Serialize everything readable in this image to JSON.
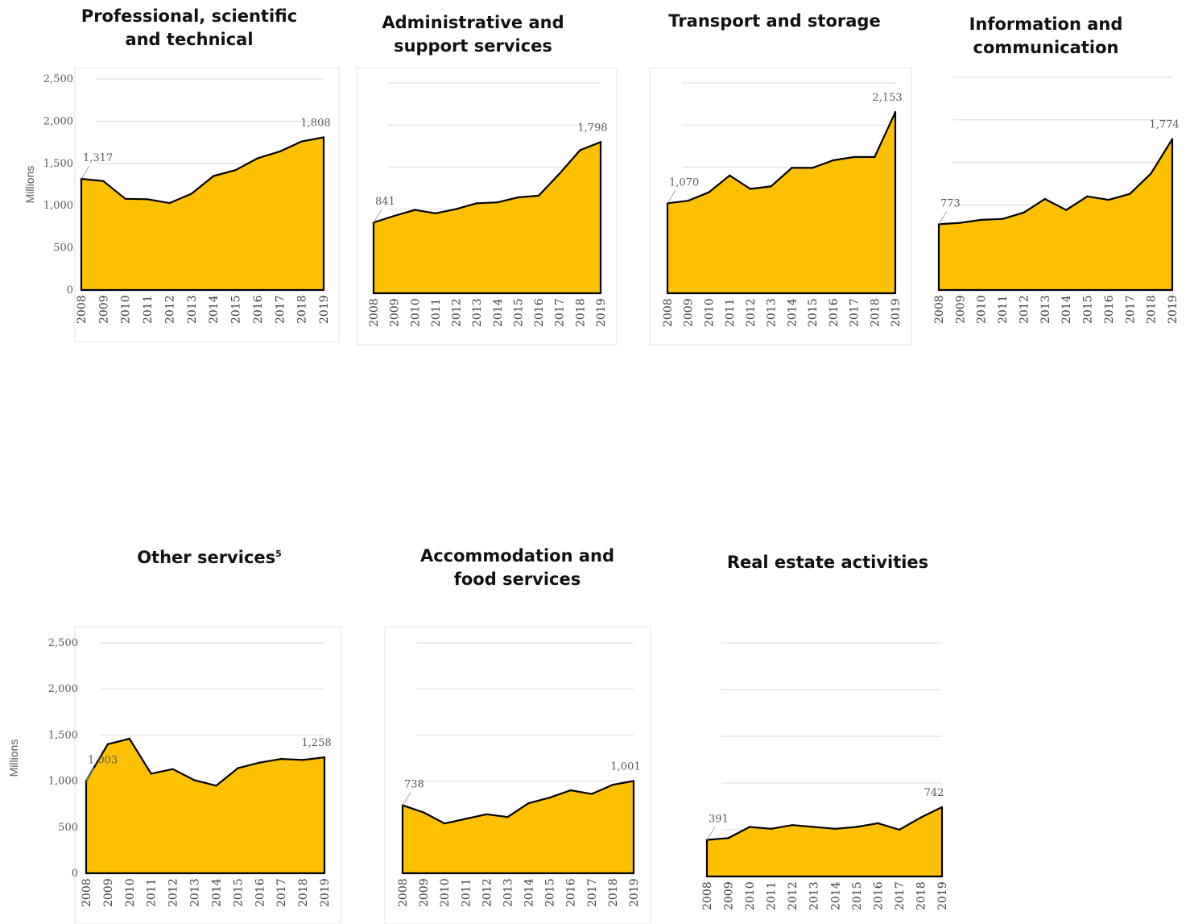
{
  "colors": {
    "area_fill": "#FFC000",
    "area_stroke": "#000000",
    "grid": "#D9D9D9",
    "frame": "#E6E6E6"
  },
  "chart_data": [
    {
      "type": "area",
      "title": "Professional, scientific and technical",
      "ylabel": "Millions",
      "ylim": [
        0,
        2500
      ],
      "y_ticks": [
        "0",
        "500",
        "1,000",
        "1,500",
        "2,000",
        "2,500"
      ],
      "categories": [
        "2008",
        "2009",
        "2010",
        "2011",
        "2012",
        "2013",
        "2014",
        "2015",
        "2016",
        "2017",
        "2018",
        "2019"
      ],
      "values": [
        1317,
        1290,
        1080,
        1075,
        1030,
        1140,
        1350,
        1420,
        1560,
        1640,
        1760,
        1808
      ],
      "labels": [
        {
          "index": 0,
          "text": "1,317"
        },
        {
          "index": 11,
          "text": "1,808"
        }
      ]
    },
    {
      "type": "area",
      "title": "Administrative and support services",
      "ylabel": "",
      "ylim": [
        0,
        2500
      ],
      "categories": [
        "2008",
        "2009",
        "2010",
        "2011",
        "2012",
        "2013",
        "2014",
        "2015",
        "2016",
        "2017",
        "2018",
        "2019"
      ],
      "values": [
        841,
        920,
        990,
        950,
        1000,
        1070,
        1080,
        1140,
        1160,
        1420,
        1700,
        1798
      ],
      "labels": [
        {
          "index": 0,
          "text": "841"
        },
        {
          "index": 11,
          "text": "1,798"
        }
      ]
    },
    {
      "type": "area",
      "title": "Transport and storage",
      "ylabel": "",
      "ylim": [
        0,
        2500
      ],
      "categories": [
        "2008",
        "2009",
        "2010",
        "2011",
        "2012",
        "2013",
        "2014",
        "2015",
        "2016",
        "2017",
        "2018",
        "2019"
      ],
      "values": [
        1070,
        1100,
        1200,
        1400,
        1240,
        1270,
        1490,
        1490,
        1580,
        1620,
        1620,
        2153
      ],
      "labels": [
        {
          "index": 0,
          "text": "1,070"
        },
        {
          "index": 11,
          "text": "2,153"
        }
      ]
    },
    {
      "type": "area",
      "title": "Information and communication",
      "ylabel": "",
      "ylim": [
        0,
        2500
      ],
      "categories": [
        "2008",
        "2009",
        "2010",
        "2011",
        "2012",
        "2013",
        "2014",
        "2015",
        "2016",
        "2017",
        "2018",
        "2019"
      ],
      "values": [
        773,
        790,
        825,
        835,
        910,
        1070,
        940,
        1100,
        1060,
        1130,
        1370,
        1774
      ],
      "labels": [
        {
          "index": 0,
          "text": "773"
        },
        {
          "index": 11,
          "text": "1,774"
        }
      ]
    },
    {
      "type": "area",
      "title": "Other services",
      "title_superscript": "5",
      "ylabel": "Millions",
      "ylim": [
        0,
        2500
      ],
      "y_ticks": [
        "0",
        "500",
        "1,000",
        "1,500",
        "2,000",
        "2,500"
      ],
      "categories": [
        "2008",
        "2009",
        "2010",
        "2011",
        "2012",
        "2013",
        "2014",
        "2015",
        "2016",
        "2017",
        "2018",
        "2019"
      ],
      "values": [
        1003,
        1400,
        1460,
        1080,
        1130,
        1010,
        950,
        1140,
        1200,
        1240,
        1230,
        1258
      ],
      "labels": [
        {
          "index": 0,
          "text": "1,003"
        },
        {
          "index": 11,
          "text": "1,258"
        }
      ]
    },
    {
      "type": "area",
      "title": "Accommodation and food services",
      "ylabel": "",
      "ylim": [
        0,
        2500
      ],
      "categories": [
        "2008",
        "2009",
        "2010",
        "2011",
        "2012",
        "2013",
        "2014",
        "2015",
        "2016",
        "2017",
        "2018",
        "2019"
      ],
      "values": [
        738,
        660,
        540,
        590,
        640,
        610,
        760,
        820,
        900,
        860,
        960,
        1001
      ],
      "labels": [
        {
          "index": 0,
          "text": "738"
        },
        {
          "index": 11,
          "text": "1,001"
        }
      ]
    },
    {
      "type": "area",
      "title": "Real estate activities",
      "ylabel": "",
      "ylim": [
        0,
        2500
      ],
      "categories": [
        "2008",
        "2009",
        "2010",
        "2011",
        "2012",
        "2013",
        "2014",
        "2015",
        "2016",
        "2017",
        "2018",
        "2019"
      ],
      "values": [
        391,
        410,
        530,
        510,
        550,
        530,
        510,
        530,
        570,
        500,
        630,
        742
      ],
      "labels": [
        {
          "index": 0,
          "text": "391"
        },
        {
          "index": 11,
          "text": "742"
        }
      ]
    }
  ]
}
